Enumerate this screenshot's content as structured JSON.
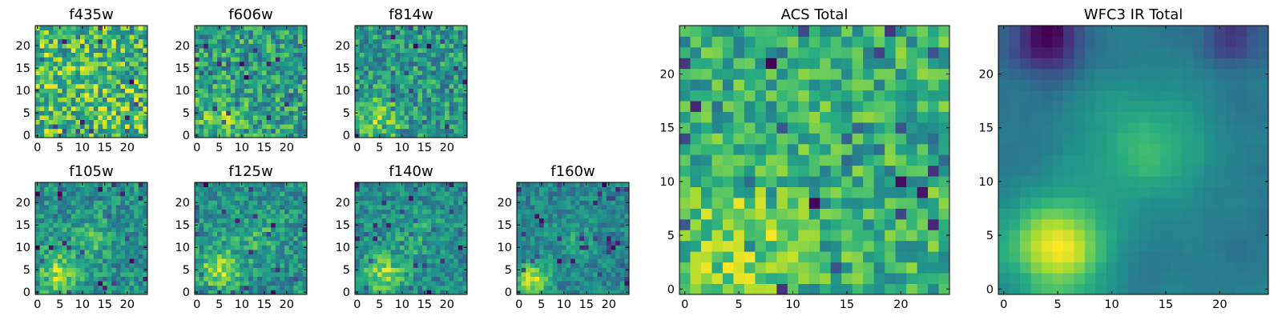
{
  "figure": {
    "description_free": true
  },
  "colormap": {
    "name": "viridis",
    "stops": [
      "#440154",
      "#472d7b",
      "#3b528b",
      "#2c728e",
      "#21918c",
      "#28ae80",
      "#5ec962",
      "#addc30",
      "#fde725"
    ]
  },
  "chart_data": [
    {
      "type": "heatmap",
      "title": "f435w",
      "size": 25,
      "xticks": [
        0,
        5,
        10,
        15,
        20
      ],
      "yticks": [
        0,
        5,
        10,
        15,
        20
      ],
      "xlim": [
        0,
        24
      ],
      "ylim": [
        0,
        24
      ],
      "bright_spots": [],
      "noise": 0.85,
      "seed": 11
    },
    {
      "type": "heatmap",
      "title": "f606w",
      "size": 25,
      "xticks": [
        0,
        5,
        10,
        15,
        20
      ],
      "yticks": [
        0,
        5,
        10,
        15,
        20
      ],
      "xlim": [
        0,
        24
      ],
      "ylim": [
        0,
        24
      ],
      "bright_spots": [
        {
          "x": 5,
          "y": 4,
          "sigma": 3.0,
          "amp": 0.35
        }
      ],
      "noise": 0.8,
      "seed": 23
    },
    {
      "type": "heatmap",
      "title": "f814w",
      "size": 25,
      "xticks": [
        0,
        5,
        10,
        15,
        20
      ],
      "yticks": [
        0,
        5,
        10,
        15,
        20
      ],
      "xlim": [
        0,
        24
      ],
      "ylim": [
        0,
        24
      ],
      "bright_spots": [
        {
          "x": 5,
          "y": 4,
          "sigma": 3.0,
          "amp": 0.45
        }
      ],
      "noise": 0.75,
      "seed": 37
    },
    {
      "type": "heatmap",
      "title": "f105w",
      "size": 25,
      "xticks": [
        0,
        5,
        10,
        15,
        20
      ],
      "yticks": [
        0,
        5,
        10,
        15,
        20
      ],
      "xlim": [
        0,
        24
      ],
      "ylim": [
        0,
        24
      ],
      "bright_spots": [
        {
          "x": 5,
          "y": 4,
          "sigma": 3.2,
          "amp": 0.6
        },
        {
          "x": 12,
          "y": 12,
          "sigma": 3.5,
          "amp": 0.25
        }
      ],
      "noise": 0.6,
      "seed": 41
    },
    {
      "type": "heatmap",
      "title": "f125w",
      "size": 25,
      "xticks": [
        0,
        5,
        10,
        15,
        20
      ],
      "yticks": [
        0,
        5,
        10,
        15,
        20
      ],
      "xlim": [
        0,
        24
      ],
      "ylim": [
        0,
        24
      ],
      "bright_spots": [
        {
          "x": 5,
          "y": 5,
          "sigma": 3.2,
          "amp": 0.6
        },
        {
          "x": 13,
          "y": 13,
          "sigma": 3.5,
          "amp": 0.25
        }
      ],
      "noise": 0.6,
      "seed": 53
    },
    {
      "type": "heatmap",
      "title": "f140w",
      "size": 25,
      "xticks": [
        0,
        5,
        10,
        15,
        20
      ],
      "yticks": [
        0,
        5,
        10,
        15,
        20
      ],
      "xlim": [
        0,
        24
      ],
      "ylim": [
        0,
        24
      ],
      "bright_spots": [
        {
          "x": 6,
          "y": 4,
          "sigma": 3.0,
          "amp": 0.65
        },
        {
          "x": 13,
          "y": 13,
          "sigma": 3.5,
          "amp": 0.25
        }
      ],
      "noise": 0.55,
      "seed": 67
    },
    {
      "type": "heatmap",
      "title": "f160w",
      "size": 25,
      "xticks": [
        0,
        5,
        10,
        15,
        20
      ],
      "yticks": [
        0,
        5,
        10,
        15,
        20
      ],
      "xlim": [
        0,
        24
      ],
      "ylim": [
        0,
        24
      ],
      "bright_spots": [
        {
          "x": 3,
          "y": 3,
          "sigma": 2.6,
          "amp": 0.75
        },
        {
          "x": 12,
          "y": 12,
          "sigma": 3.5,
          "amp": 0.2
        }
      ],
      "noise": 0.5,
      "seed": 79
    },
    {
      "type": "heatmap",
      "title": "ACS Total",
      "size": 25,
      "xticks": [
        0,
        5,
        10,
        15,
        20
      ],
      "yticks": [
        0,
        5,
        10,
        15,
        20
      ],
      "xlim": [
        0,
        24
      ],
      "ylim": [
        0,
        24
      ],
      "bright_spots": [
        {
          "x": 5,
          "y": 4,
          "sigma": 3.5,
          "amp": 0.3
        }
      ],
      "noise": 0.55,
      "seed": 97
    },
    {
      "type": "heatmap",
      "title": "WFC3 IR Total",
      "size": 25,
      "xticks": [
        0,
        5,
        10,
        15,
        20
      ],
      "yticks": [
        0,
        5,
        10,
        15,
        20
      ],
      "xlim": [
        0,
        24
      ],
      "ylim": [
        0,
        24
      ],
      "bright_spots": [
        {
          "x": 5,
          "y": 4,
          "sigma": 3.0,
          "amp": 0.7
        },
        {
          "x": 13,
          "y": 13,
          "sigma": 4.0,
          "amp": 0.3
        }
      ],
      "dark_spots": [
        {
          "x": 4,
          "y": 23,
          "sigma": 2.0,
          "amp": 0.55
        },
        {
          "x": 21,
          "y": 23,
          "sigma": 1.5,
          "amp": 0.35
        }
      ],
      "noise": 0.15,
      "smooth": true,
      "seed": 101
    }
  ]
}
